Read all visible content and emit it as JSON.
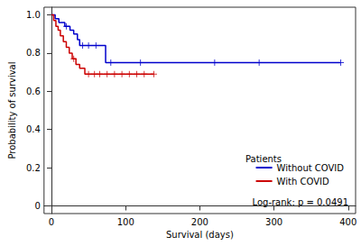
{
  "chart_data": {
    "type": "kaplan-meier",
    "x_label": "Survival (days)",
    "y_label": "Probability of survival",
    "legend_title": "Patients",
    "annotation": "Log-rank: p = 0.0491",
    "legend": "lower right",
    "xlim": [
      -10,
      410
    ],
    "xticks": [
      0,
      100,
      200,
      300,
      400
    ],
    "ylim": [
      -0.04,
      1.04
    ],
    "yticks": [
      0,
      0.2,
      0.4,
      0.6,
      0.8,
      {
        "value": 1,
        "label": "1.0"
      }
    ],
    "series": [
      {
        "name": "Without COVID",
        "color": "#0000cc",
        "x": [
          0,
          5,
          10,
          18,
          25,
          30,
          35,
          38,
          73,
          390
        ],
        "values": [
          1.0,
          0.98,
          0.96,
          0.94,
          0.92,
          0.9,
          0.87,
          0.84,
          0.75,
          0.75
        ],
        "censor_x": [
          20,
          42,
          50,
          60,
          80,
          120,
          220,
          280,
          390
        ],
        "censor_y": [
          0.94,
          0.84,
          0.84,
          0.84,
          0.75,
          0.75,
          0.75,
          0.75,
          0.75
        ]
      },
      {
        "name": "With COVID",
        "color": "#cc0000",
        "x": [
          0,
          3,
          6,
          9,
          12,
          16,
          20,
          24,
          28,
          33,
          38,
          45,
          138
        ],
        "values": [
          1.0,
          0.97,
          0.94,
          0.92,
          0.89,
          0.86,
          0.83,
          0.8,
          0.77,
          0.74,
          0.72,
          0.69,
          0.69
        ],
        "censor_x": [
          30,
          50,
          58,
          65,
          75,
          85,
          95,
          105,
          115,
          125,
          138
        ],
        "censor_y": [
          0.77,
          0.69,
          0.69,
          0.69,
          0.69,
          0.69,
          0.69,
          0.69,
          0.69,
          0.69,
          0.69
        ]
      }
    ]
  }
}
